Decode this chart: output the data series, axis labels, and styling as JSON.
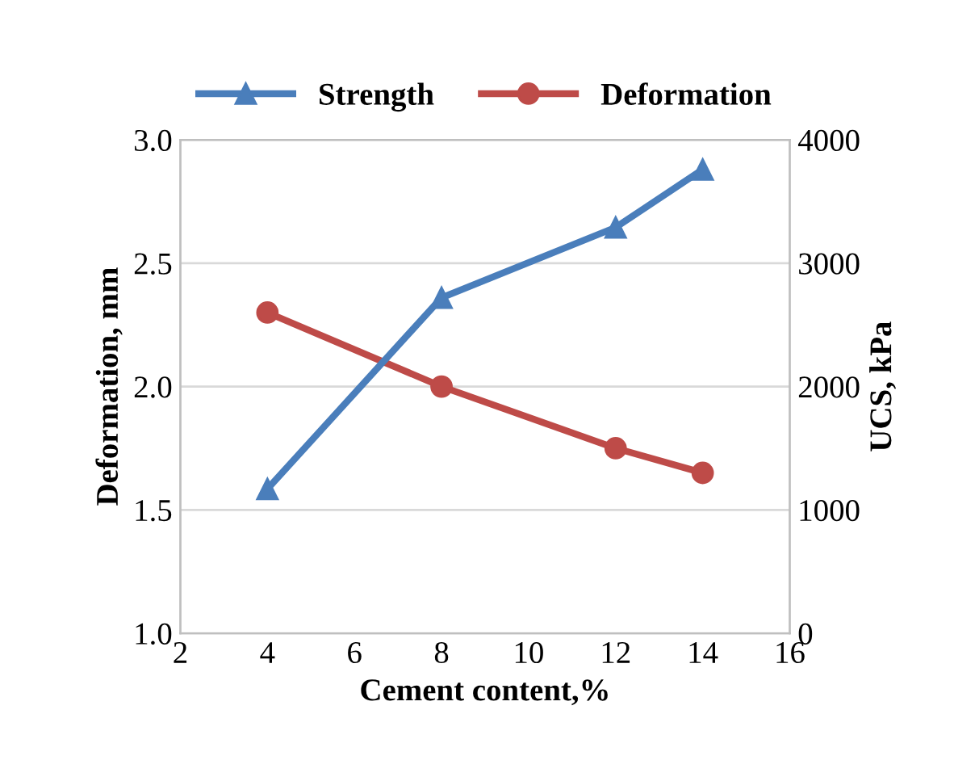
{
  "chart_data": {
    "type": "line",
    "xlabel": "Cement content,%",
    "ylabel": "Deformation, mm",
    "y2label": "UCS, kPa",
    "xlim": [
      2,
      16
    ],
    "xticks": [
      2,
      4,
      6,
      8,
      10,
      12,
      14,
      16
    ],
    "ylim": [
      1.0,
      3.0
    ],
    "yticks": [
      {
        "value": 1.0,
        "label": "1.0"
      },
      {
        "value": 1.5,
        "label": "1.5"
      },
      {
        "value": 2.0,
        "label": "2.0"
      },
      {
        "value": 2.5,
        "label": "2.5"
      },
      {
        "value": 3.0,
        "label": "3.0"
      }
    ],
    "y2lim": [
      0,
      4000
    ],
    "y2ticks": [
      0,
      1000,
      2000,
      3000,
      4000
    ],
    "grid": "y",
    "legend": "top",
    "line_style": "solid",
    "series": [
      {
        "name": "Strength",
        "color": "#4a7ebb",
        "axis": "y2",
        "marker": "triangle",
        "x": [
          4,
          8,
          12,
          14
        ],
        "values": [
          1170,
          2720,
          3290,
          3760
        ]
      },
      {
        "name": "Deformation",
        "color": "#be4b48",
        "axis": "y",
        "marker": "circle",
        "x": [
          4,
          8,
          12,
          14
        ],
        "values": [
          2.3,
          2.0,
          1.75,
          1.65
        ]
      }
    ]
  }
}
